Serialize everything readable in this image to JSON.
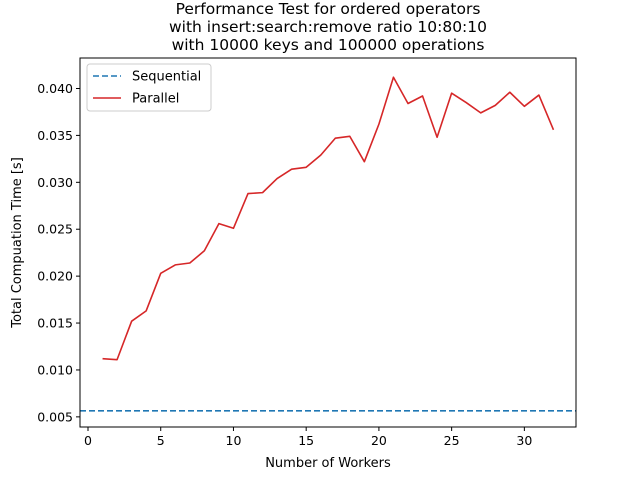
{
  "chart_data": {
    "type": "line",
    "title_lines": [
      "Performance Test for ordered operators",
      "with insert:search:remove ratio 10:80:10",
      "with 10000 keys and 100000 operations"
    ],
    "xlabel": "Number of Workers",
    "ylabel": "Total Compuation Time [s]",
    "xlim": [
      -0.55,
      33.55
    ],
    "ylim": [
      0.00392,
      0.04325
    ],
    "xticks": [
      0,
      5,
      10,
      15,
      20,
      25,
      30
    ],
    "xtick_labels": [
      "0",
      "5",
      "10",
      "15",
      "20",
      "25",
      "30"
    ],
    "yticks": [
      0.005,
      0.01,
      0.015,
      0.02,
      0.025,
      0.03,
      0.035,
      0.04
    ],
    "ytick_labels": [
      "0.005",
      "0.010",
      "0.015",
      "0.020",
      "0.025",
      "0.030",
      "0.035",
      "0.040"
    ],
    "legend_position": "upper-left",
    "series": [
      {
        "name": "Sequential",
        "style": "dashed",
        "color": "#1f77b4",
        "hline": 0.00565
      },
      {
        "name": "Parallel",
        "style": "solid",
        "color": "#d62728",
        "x": [
          1,
          2,
          3,
          4,
          5,
          6,
          7,
          8,
          9,
          10,
          11,
          12,
          13,
          14,
          15,
          16,
          17,
          18,
          19,
          20,
          21,
          22,
          23,
          24,
          25,
          26,
          27,
          28,
          29,
          30,
          31,
          32
        ],
        "y": [
          0.0112,
          0.0111,
          0.0152,
          0.0163,
          0.0203,
          0.0212,
          0.0214,
          0.0227,
          0.0256,
          0.0251,
          0.0288,
          0.0289,
          0.0304,
          0.0314,
          0.0316,
          0.0329,
          0.0347,
          0.0349,
          0.0322,
          0.0362,
          0.0412,
          0.0384,
          0.0392,
          0.0348,
          0.0395,
          0.0385,
          0.0374,
          0.0382,
          0.0396,
          0.0381,
          0.0393,
          0.0356
        ]
      }
    ]
  }
}
